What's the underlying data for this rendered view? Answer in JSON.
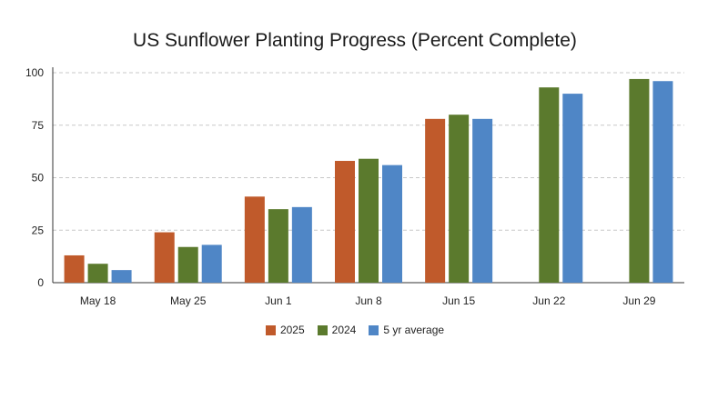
{
  "chart_data": {
    "type": "bar",
    "title": "US Sunflower Planting Progress (Percent Complete)",
    "xlabel": "",
    "ylabel": "",
    "categories": [
      "May 18",
      "May 25",
      "Jun 1",
      "Jun 8",
      "Jun 15",
      "Jun 22",
      "Jun 29"
    ],
    "series": [
      {
        "name": "2025",
        "color": "#c05a2b",
        "values": [
          13,
          24,
          41,
          58,
          78,
          null,
          null
        ]
      },
      {
        "name": "2024",
        "color": "#5b7a2d",
        "values": [
          9,
          17,
          35,
          59,
          80,
          93,
          97
        ]
      },
      {
        "name": "5 yr average",
        "color": "#4f86c6",
        "values": [
          6,
          18,
          36,
          56,
          78,
          90,
          96
        ]
      }
    ],
    "ylim": [
      0,
      100
    ],
    "yticks": [
      0,
      25,
      50,
      75,
      100
    ],
    "grid": true,
    "legend_position": "bottom-center"
  }
}
